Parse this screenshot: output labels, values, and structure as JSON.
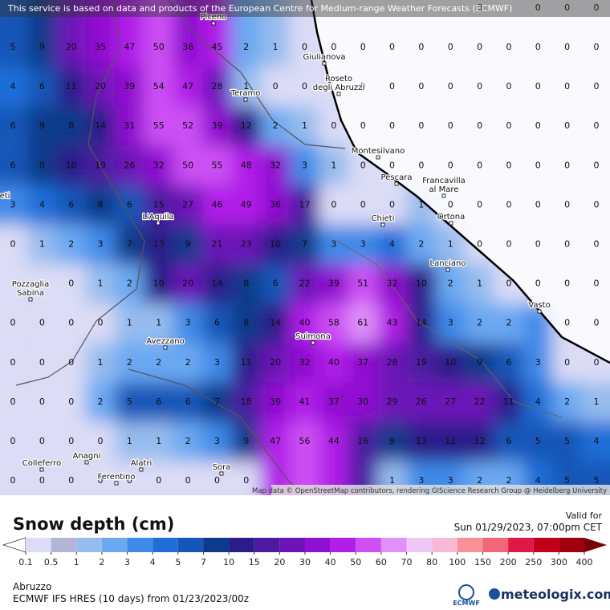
{
  "attribution_top": "This service is based on data and products of the European Centre for Medium-range Weather Forecasts (ECMWF)",
  "attribution_map": "Map data © OpenStreetMap contributors, rendering GIScience Research Group @ Heidelberg University",
  "grid": {
    "rows": [
      [
        null,
        null,
        null,
        null,
        null,
        null,
        null,
        null,
        null,
        null,
        null,
        null,
        null,
        null,
        null,
        null,
        0,
        null,
        0,
        0,
        0
      ],
      [
        5,
        9,
        20,
        35,
        47,
        50,
        36,
        45,
        2,
        1,
        0,
        0,
        0,
        0,
        0,
        0,
        0,
        0,
        0,
        0,
        0
      ],
      [
        4,
        6,
        11,
        20,
        39,
        54,
        47,
        28,
        1,
        0,
        0,
        null,
        0,
        0,
        0,
        0,
        0,
        0,
        0,
        0,
        0
      ],
      [
        6,
        9,
        8,
        14,
        31,
        55,
        52,
        39,
        12,
        2,
        1,
        0,
        0,
        0,
        0,
        0,
        0,
        0,
        0,
        0,
        0
      ],
      [
        6,
        8,
        10,
        19,
        26,
        32,
        50,
        55,
        48,
        32,
        3,
        1,
        0,
        0,
        0,
        0,
        0,
        0,
        0,
        0,
        0
      ],
      [
        3,
        4,
        6,
        8,
        6,
        15,
        27,
        46,
        49,
        36,
        17,
        0,
        0,
        0,
        1,
        0,
        0,
        0,
        0,
        0,
        0
      ],
      [
        0,
        1,
        2,
        3,
        7,
        13,
        9,
        21,
        23,
        10,
        7,
        3,
        3,
        4,
        2,
        1,
        0,
        0,
        0,
        0,
        0
      ],
      [
        null,
        null,
        0,
        1,
        2,
        10,
        20,
        14,
        8,
        6,
        22,
        39,
        51,
        32,
        10,
        2,
        1,
        0,
        0,
        0,
        0
      ],
      [
        0,
        0,
        0,
        0,
        1,
        1,
        3,
        6,
        8,
        14,
        40,
        58,
        61,
        43,
        14,
        3,
        2,
        2,
        null,
        0,
        0
      ],
      [
        0,
        0,
        0,
        1,
        2,
        2,
        2,
        3,
        11,
        20,
        32,
        40,
        37,
        28,
        19,
        10,
        9,
        6,
        3,
        0,
        0
      ],
      [
        0,
        0,
        0,
        2,
        5,
        6,
        6,
        7,
        18,
        39,
        41,
        37,
        30,
        29,
        26,
        27,
        22,
        11,
        4,
        2,
        1
      ],
      [
        0,
        0,
        0,
        0,
        1,
        1,
        2,
        3,
        9,
        47,
        56,
        44,
        16,
        9,
        13,
        12,
        12,
        6,
        5,
        5,
        4
      ],
      [
        0,
        0,
        0,
        0,
        0,
        0,
        0,
        0,
        0,
        null,
        null,
        null,
        null,
        1,
        3,
        3,
        2,
        2,
        4,
        5,
        5
      ]
    ]
  },
  "cities": [
    {
      "lines": [
        "Piceno"
      ]
    },
    {
      "lines": [
        "Giulianova"
      ]
    },
    {
      "lines": [
        "Roseto",
        "degli Abruzzi"
      ]
    },
    {
      "lines": [
        "Teramo"
      ]
    },
    {
      "lines": [
        "Montesilvano"
      ]
    },
    {
      "lines": [
        "Pescara"
      ]
    },
    {
      "lines": [
        "Francavilla",
        "al Mare"
      ]
    },
    {
      "lines": [
        "Chieti"
      ]
    },
    {
      "lines": [
        "L'Aquila"
      ]
    },
    {
      "lines": [
        "Ortona"
      ]
    },
    {
      "lines": [
        "Lanciano"
      ]
    },
    {
      "lines": [
        "Pozzaglia",
        "Sabina"
      ]
    },
    {
      "lines": [
        "Vasto"
      ]
    },
    {
      "lines": [
        "Sulmona"
      ]
    },
    {
      "lines": [
        "Avezzano"
      ]
    },
    {
      "lines": [
        "Colleferro"
      ]
    },
    {
      "lines": [
        "Anagni"
      ]
    },
    {
      "lines": [
        "Alatri"
      ]
    },
    {
      "lines": [
        "Sora"
      ]
    },
    {
      "lines": [
        "Ferentino"
      ]
    },
    {
      "lines": [
        "eti"
      ]
    }
  ],
  "legend": {
    "title": "Snow depth (cm)",
    "labels": [
      0.1,
      0.5,
      1,
      2,
      3,
      4,
      5,
      7,
      10,
      15,
      20,
      30,
      40,
      50,
      60,
      70,
      80,
      100,
      150,
      200,
      250,
      300,
      400
    ],
    "colors": [
      "#ffffff",
      "#dcdcf6",
      "#b4b4d8",
      "#96bcee",
      "#6aa8f2",
      "#3f8ae8",
      "#1f6ed8",
      "#1656b8",
      "#0d3a8a",
      "#2a1c8a",
      "#4c1aa0",
      "#6c14b8",
      "#9010d0",
      "#b01ee8",
      "#cc50f4",
      "#e090f8",
      "#f0c8f8",
      "#f8b8d8",
      "#f89098",
      "#f06878",
      "#e01848",
      "#c00018",
      "#a00010",
      "#780008"
    ]
  },
  "valid": {
    "label": "Valid for",
    "time": "Sun 01/29/2023, 07:00pm CET"
  },
  "footer": {
    "region": "Abruzzo",
    "model": "ECMWF IFS HRES (10 days) from 01/23/2023/00z",
    "logo_small": "ECMWF",
    "logo": "meteologix.com"
  }
}
